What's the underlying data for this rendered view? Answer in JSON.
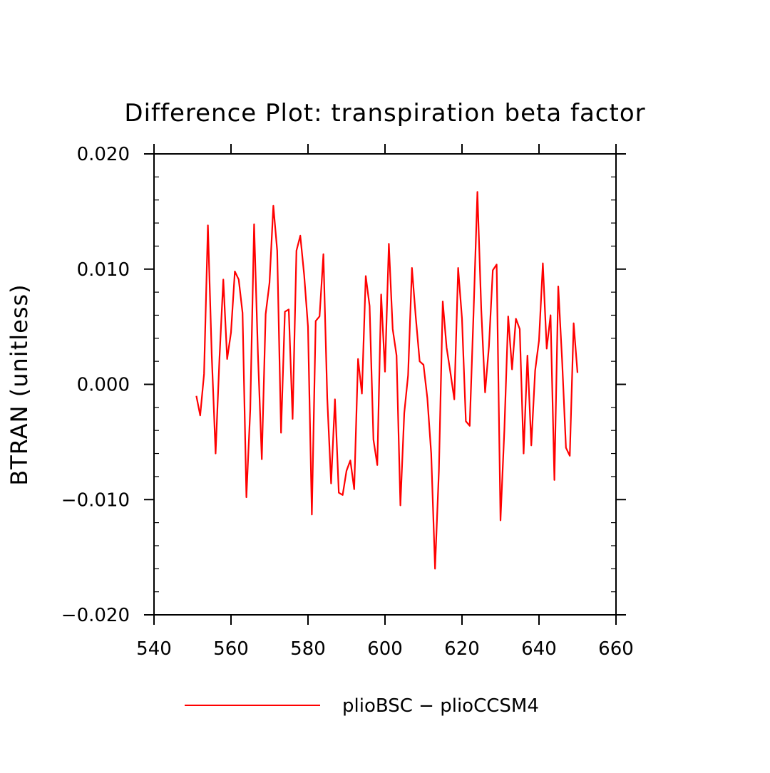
{
  "chart_data": {
    "type": "line",
    "title": "Difference Plot: transpiration beta factor",
    "xlabel": "",
    "ylabel": "BTRAN  (unitless)",
    "xlim": [
      540,
      660
    ],
    "ylim": [
      -0.02,
      0.02
    ],
    "x_ticks": [
      540,
      560,
      580,
      600,
      620,
      640,
      660
    ],
    "y_ticks": [
      -0.02,
      -0.01,
      0.0,
      0.01,
      0.02
    ],
    "x_tick_labels": [
      "540",
      "560",
      "580",
      "600",
      "620",
      "640",
      "660"
    ],
    "y_tick_labels": [
      "−0.020",
      "−0.010",
      "0.000",
      "0.010",
      "0.020"
    ],
    "grid": false,
    "legend_position": "bottom",
    "series": [
      {
        "name": "plioBSC − plioCCSM4",
        "color": "#ff0000",
        "x": [
          551,
          552,
          553,
          554,
          555,
          556,
          557,
          558,
          559,
          560,
          561,
          562,
          563,
          564,
          565,
          566,
          567,
          568,
          569,
          570,
          571,
          572,
          573,
          574,
          575,
          576,
          577,
          578,
          579,
          580,
          581,
          582,
          583,
          584,
          585,
          586,
          587,
          588,
          589,
          590,
          591,
          592,
          593,
          594,
          595,
          596,
          597,
          598,
          599,
          600,
          601,
          602,
          603,
          604,
          605,
          606,
          607,
          608,
          609,
          610,
          611,
          612,
          613,
          614,
          615,
          616,
          617,
          618,
          619,
          620,
          621,
          622,
          623,
          624,
          625,
          626,
          627,
          628,
          629,
          630,
          631,
          632,
          633,
          634,
          635,
          636,
          637,
          638,
          639,
          640,
          641,
          642,
          643,
          644,
          645,
          646,
          647,
          648,
          649,
          650
        ],
        "y": [
          -0.001,
          -0.0027,
          0.0009,
          0.0138,
          0.0025,
          -0.006,
          0.0022,
          0.0091,
          0.0022,
          0.0045,
          0.0098,
          0.0091,
          0.0062,
          -0.0098,
          -0.0022,
          0.0139,
          0.0026,
          -0.0065,
          0.0061,
          0.0088,
          0.0155,
          0.0116,
          -0.0042,
          0.0063,
          0.0065,
          -0.003,
          0.0116,
          0.0129,
          0.0095,
          0.005,
          -0.0113,
          0.0055,
          0.0059,
          0.0113,
          -0.0012,
          -0.0086,
          -0.0013,
          -0.0094,
          -0.0096,
          -0.0075,
          -0.0066,
          -0.0091,
          0.0022,
          -0.0008,
          0.0094,
          0.0068,
          -0.0048,
          -0.007,
          0.0078,
          0.0011,
          0.0122,
          0.0048,
          0.0025,
          -0.0105,
          -0.0025,
          0.0008,
          0.0101,
          0.0058,
          0.002,
          0.0017,
          -0.0012,
          -0.006,
          -0.016,
          -0.0075,
          0.0072,
          0.0032,
          0.001,
          -0.0013,
          0.0101,
          0.0057,
          -0.0032,
          -0.0036,
          0.0062,
          0.0167,
          0.0065,
          -0.0007,
          0.0033,
          0.0099,
          0.0104,
          -0.0118,
          -0.004,
          0.0059,
          0.0013,
          0.0057,
          0.0048,
          -0.006,
          0.0025,
          -0.0053,
          0.0012,
          0.0038,
          0.0105,
          0.0031,
          0.006,
          -0.0083,
          0.0085,
          0.0021,
          -0.0055,
          -0.0062,
          0.0053,
          0.001
        ]
      }
    ]
  }
}
